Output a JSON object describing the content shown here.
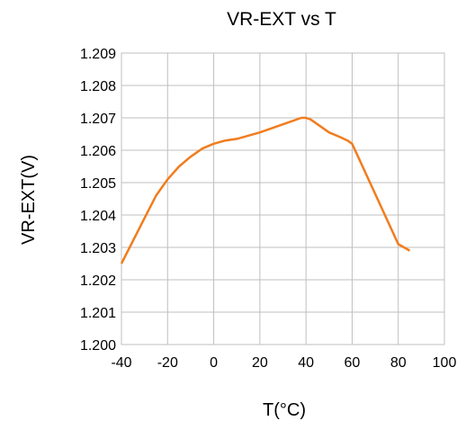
{
  "chart_data": {
    "type": "line",
    "title": "VR-EXT vs T",
    "xlabel": "T(°C)",
    "ylabel": "VR-EXT(V)",
    "xlim": [
      -40,
      100
    ],
    "ylim": [
      1.2,
      1.209
    ],
    "x_ticks": [
      "-40",
      "-20",
      "0",
      "20",
      "40",
      "60",
      "80",
      "100"
    ],
    "y_ticks": [
      "1.200",
      "1.201",
      "1.202",
      "1.203",
      "1.204",
      "1.205",
      "1.206",
      "1.207",
      "1.208",
      "1.209"
    ],
    "grid": true,
    "series": [
      {
        "color": "#f07d1f",
        "x": [
          -40,
          -30,
          -25,
          -20,
          -15,
          -10,
          -5,
          0,
          5,
          10,
          20,
          30,
          38,
          40,
          42,
          50,
          55,
          58,
          60,
          70,
          80,
          85
        ],
        "y": [
          1.2025,
          1.2039,
          1.2046,
          1.2051,
          1.2055,
          1.2058,
          1.20605,
          1.2062,
          1.2063,
          1.20635,
          1.20655,
          1.2068,
          1.207,
          1.207,
          1.20695,
          1.20655,
          1.2064,
          1.2063,
          1.2062,
          1.20465,
          1.2031,
          1.2029
        ]
      }
    ]
  }
}
